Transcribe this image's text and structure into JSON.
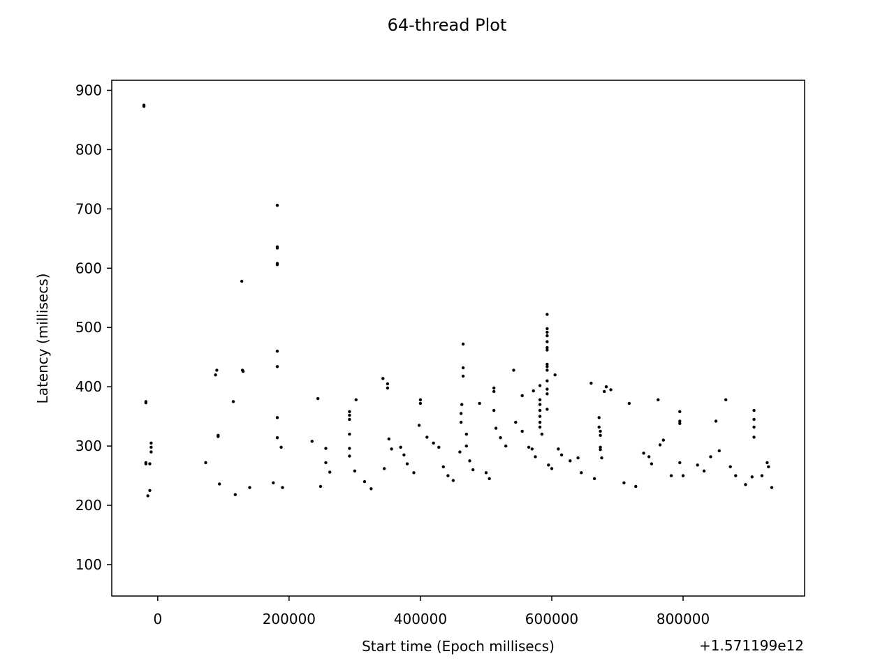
{
  "chart_data": {
    "type": "scatter",
    "title": "64-thread Plot",
    "xlabel": "Start time (Epoch millisecs)",
    "ylabel": "Latency (millisecs)",
    "x_offset_label": "+1.571199e12",
    "xlim": [
      -70000,
      985000
    ],
    "ylim": [
      47,
      917
    ],
    "x_ticks": [
      0,
      200000,
      400000,
      600000,
      800000
    ],
    "x_tick_labels": [
      "0",
      "200000",
      "400000",
      "600000",
      "800000"
    ],
    "y_ticks": [
      100,
      200,
      300,
      400,
      500,
      600,
      700,
      800,
      900
    ],
    "y_tick_labels": [
      "100",
      "200",
      "300",
      "400",
      "500",
      "600",
      "700",
      "800",
      "900"
    ],
    "grid": false,
    "marker_color": "#000000",
    "series": [
      {
        "points": [
          [
            -21000,
            875
          ],
          [
            -21000,
            873
          ],
          [
            -18000,
            375
          ],
          [
            -18000,
            373
          ],
          [
            -18000,
            272
          ],
          [
            -18000,
            270
          ],
          [
            -10000,
            305
          ],
          [
            -10000,
            298
          ],
          [
            -10000,
            290
          ],
          [
            -12000,
            270
          ],
          [
            -15000,
            216
          ],
          [
            -12000,
            225
          ],
          [
            73000,
            272
          ],
          [
            88000,
            420
          ],
          [
            90000,
            428
          ],
          [
            92000,
            318
          ],
          [
            92000,
            316
          ],
          [
            94000,
            236
          ],
          [
            128000,
            578
          ],
          [
            129000,
            428
          ],
          [
            130000,
            426
          ],
          [
            115000,
            375
          ],
          [
            118000,
            218
          ],
          [
            140000,
            230
          ],
          [
            182000,
            706
          ],
          [
            182000,
            636
          ],
          [
            182000,
            634
          ],
          [
            182000,
            608
          ],
          [
            182000,
            606
          ],
          [
            182000,
            460
          ],
          [
            182000,
            434
          ],
          [
            182000,
            348
          ],
          [
            182000,
            314
          ],
          [
            188000,
            298
          ],
          [
            176000,
            238
          ],
          [
            190000,
            230
          ],
          [
            235000,
            308
          ],
          [
            244000,
            380
          ],
          [
            256000,
            296
          ],
          [
            256000,
            272
          ],
          [
            262000,
            256
          ],
          [
            248000,
            232
          ],
          [
            292000,
            358
          ],
          [
            292000,
            352
          ],
          [
            292000,
            345
          ],
          [
            292000,
            320
          ],
          [
            292000,
            296
          ],
          [
            292000,
            283
          ],
          [
            302000,
            378
          ],
          [
            300000,
            258
          ],
          [
            315000,
            240
          ],
          [
            325000,
            228
          ],
          [
            343000,
            414
          ],
          [
            350000,
            405
          ],
          [
            350000,
            398
          ],
          [
            352000,
            312
          ],
          [
            356000,
            295
          ],
          [
            345000,
            262
          ],
          [
            370000,
            298
          ],
          [
            375000,
            285
          ],
          [
            380000,
            270
          ],
          [
            390000,
            255
          ],
          [
            400000,
            378
          ],
          [
            400000,
            372
          ],
          [
            398000,
            335
          ],
          [
            410000,
            315
          ],
          [
            420000,
            305
          ],
          [
            428000,
            298
          ],
          [
            435000,
            265
          ],
          [
            442000,
            250
          ],
          [
            450000,
            242
          ],
          [
            465000,
            472
          ],
          [
            465000,
            432
          ],
          [
            465000,
            418
          ],
          [
            463000,
            370
          ],
          [
            462000,
            355
          ],
          [
            462000,
            340
          ],
          [
            470000,
            320
          ],
          [
            470000,
            300
          ],
          [
            460000,
            290
          ],
          [
            475000,
            275
          ],
          [
            480000,
            260
          ],
          [
            490000,
            372
          ],
          [
            500000,
            255
          ],
          [
            505000,
            245
          ],
          [
            512000,
            398
          ],
          [
            512000,
            392
          ],
          [
            512000,
            360
          ],
          [
            515000,
            330
          ],
          [
            522000,
            314
          ],
          [
            530000,
            300
          ],
          [
            542000,
            428
          ],
          [
            545000,
            340
          ],
          [
            555000,
            385
          ],
          [
            555000,
            325
          ],
          [
            565000,
            298
          ],
          [
            572000,
            393
          ],
          [
            570000,
            295
          ],
          [
            575000,
            282
          ],
          [
            582000,
            402
          ],
          [
            582000,
            378
          ],
          [
            582000,
            370
          ],
          [
            582000,
            360
          ],
          [
            582000,
            350
          ],
          [
            582000,
            340
          ],
          [
            582000,
            332
          ],
          [
            585000,
            320
          ],
          [
            593000,
            522
          ],
          [
            593000,
            498
          ],
          [
            593000,
            492
          ],
          [
            593000,
            486
          ],
          [
            593000,
            476
          ],
          [
            593000,
            466
          ],
          [
            593000,
            462
          ],
          [
            593000,
            438
          ],
          [
            593000,
            434
          ],
          [
            593000,
            428
          ],
          [
            593000,
            410
          ],
          [
            593000,
            396
          ],
          [
            593000,
            388
          ],
          [
            593000,
            362
          ],
          [
            595000,
            268
          ],
          [
            600000,
            262
          ],
          [
            605000,
            420
          ],
          [
            610000,
            295
          ],
          [
            615000,
            285
          ],
          [
            628000,
            275
          ],
          [
            640000,
            280
          ],
          [
            645000,
            255
          ],
          [
            660000,
            406
          ],
          [
            665000,
            245
          ],
          [
            672000,
            348
          ],
          [
            672000,
            332
          ],
          [
            674000,
            325
          ],
          [
            674000,
            318
          ],
          [
            674000,
            298
          ],
          [
            674000,
            294
          ],
          [
            676000,
            280
          ],
          [
            680000,
            392
          ],
          [
            683000,
            400
          ],
          [
            690000,
            395
          ],
          [
            710000,
            238
          ],
          [
            718000,
            372
          ],
          [
            728000,
            232
          ],
          [
            740000,
            288
          ],
          [
            748000,
            282
          ],
          [
            752000,
            270
          ],
          [
            762000,
            378
          ],
          [
            765000,
            302
          ],
          [
            770000,
            310
          ],
          [
            782000,
            250
          ],
          [
            795000,
            358
          ],
          [
            795000,
            342
          ],
          [
            795000,
            338
          ],
          [
            795000,
            272
          ],
          [
            800000,
            250
          ],
          [
            822000,
            268
          ],
          [
            832000,
            258
          ],
          [
            842000,
            282
          ],
          [
            850000,
            342
          ],
          [
            855000,
            292
          ],
          [
            865000,
            378
          ],
          [
            872000,
            265
          ],
          [
            880000,
            250
          ],
          [
            895000,
            235
          ],
          [
            908000,
            360
          ],
          [
            908000,
            345
          ],
          [
            908000,
            332
          ],
          [
            908000,
            315
          ],
          [
            905000,
            248
          ],
          [
            920000,
            250
          ],
          [
            928000,
            272
          ],
          [
            930000,
            265
          ],
          [
            935000,
            230
          ]
        ]
      }
    ]
  }
}
